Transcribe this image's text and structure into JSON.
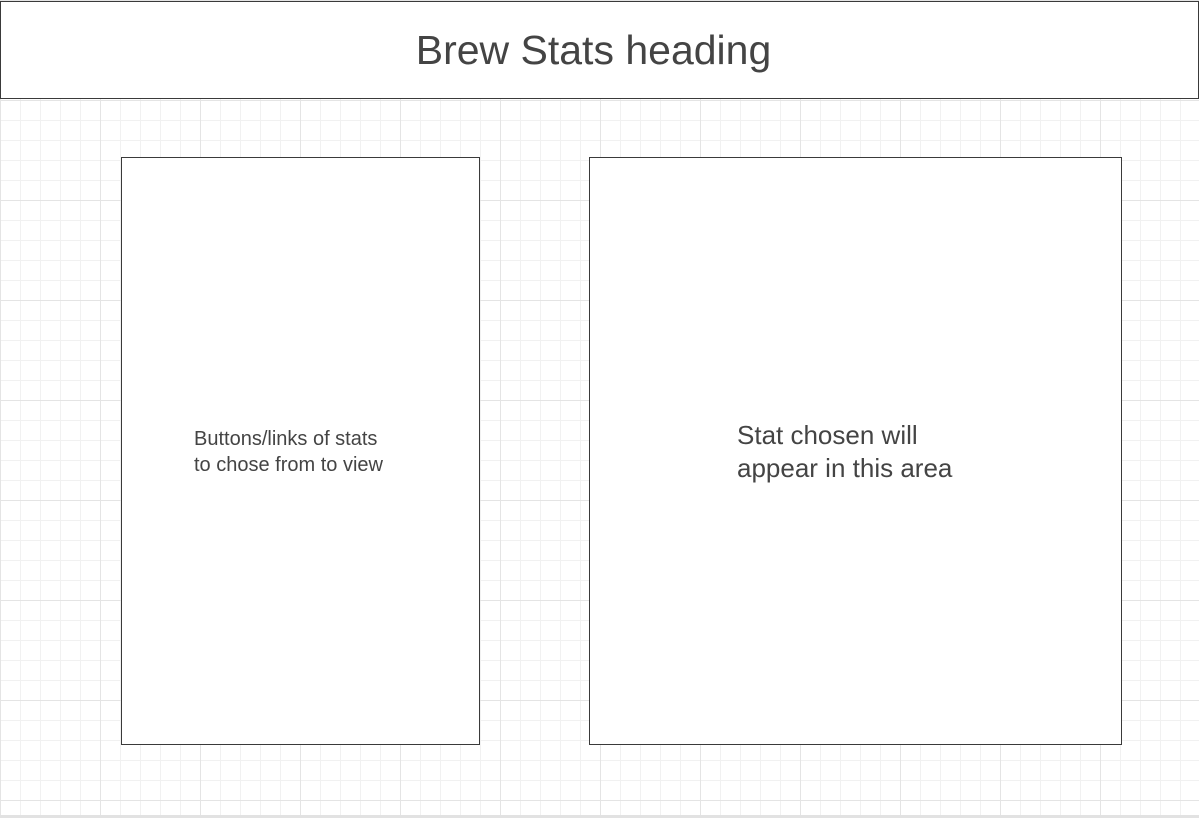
{
  "header": {
    "title": "Brew Stats heading"
  },
  "left_panel": {
    "line1": "Buttons/links of stats",
    "line2": "to chose from to view"
  },
  "right_panel": {
    "line1": "Stat chosen will",
    "line2": "appear in this area"
  },
  "colors": {
    "text": "#444444",
    "border": "#3a3a3a",
    "grid": "#e4e4e4",
    "background": "#ffffff"
  }
}
